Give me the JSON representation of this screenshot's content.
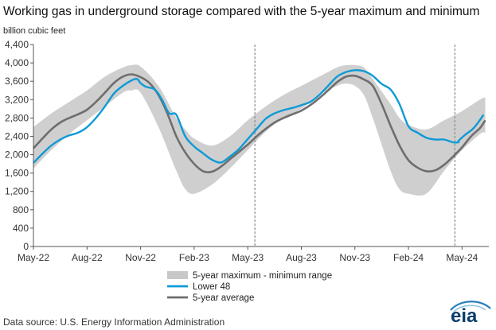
{
  "chart_data": {
    "type": "line",
    "title": "Working gas in underground  storage compared with the 5-year maximum and minimum",
    "ylabel": "billion cubic feet",
    "xlabel": "",
    "ylim": [
      0,
      4400
    ],
    "yticks": [
      0,
      400,
      800,
      1200,
      1600,
      2000,
      2400,
      2800,
      3200,
      3600,
      4000,
      4400
    ],
    "ytick_labels": [
      "0",
      "400",
      "800",
      "1,200",
      "1,600",
      "2,000",
      "2,400",
      "2,800",
      "3,200",
      "3,600",
      "4,000",
      "4,400"
    ],
    "xlim": [
      0,
      25.5
    ],
    "x_unit": "months since May-22",
    "xticks": [
      {
        "x": 0,
        "label": "May-22"
      },
      {
        "x": 3,
        "label": "Aug-22"
      },
      {
        "x": 6,
        "label": "Nov-22"
      },
      {
        "x": 9,
        "label": "Feb-23"
      },
      {
        "x": 12,
        "label": "May-23"
      },
      {
        "x": 15,
        "label": "Aug-23"
      },
      {
        "x": 18,
        "label": "Nov-23"
      },
      {
        "x": 21,
        "label": "Feb-24"
      },
      {
        "x": 24,
        "label": "May-24"
      }
    ],
    "vlines": [
      12.4,
      23.6
    ],
    "grid": false,
    "legend": {
      "position": "bottom-center",
      "entries": [
        {
          "label": "5-year maximum - minimum range",
          "color": "#c8c8c8",
          "kind": "band"
        },
        {
          "label": "Lower 48",
          "color": "#0f9ad6",
          "kind": "line"
        },
        {
          "label": "5-year average",
          "color": "#6e6e6e",
          "kind": "line"
        }
      ]
    },
    "band": {
      "name": "5-year maximum - minimum range",
      "x": [
        0,
        1,
        2,
        3,
        4,
        5,
        5.5,
        6,
        7,
        8,
        8.5,
        9,
        10,
        11,
        12,
        13,
        14,
        15,
        16,
        17,
        17.5,
        18,
        18.5,
        19,
        20,
        20.5,
        21,
        22,
        23,
        24,
        25,
        25.3
      ],
      "max": [
        2600,
        2900,
        3150,
        3400,
        3700,
        3900,
        3950,
        3920,
        3500,
        2800,
        2550,
        2350,
        2200,
        2400,
        2750,
        3050,
        3300,
        3500,
        3700,
        3900,
        3950,
        3950,
        3900,
        3650,
        3100,
        2800,
        2650,
        2550,
        2750,
        2950,
        3200,
        3250
      ],
      "min": [
        1700,
        2100,
        2450,
        2750,
        3050,
        3350,
        3400,
        3350,
        2600,
        1650,
        1250,
        1150,
        1350,
        1700,
        2100,
        2500,
        2800,
        3000,
        3300,
        3500,
        3550,
        3500,
        3300,
        2800,
        1650,
        1250,
        1150,
        1150,
        1650,
        2100,
        2450,
        2480
      ]
    },
    "series": [
      {
        "name": "Lower 48",
        "color": "#0f9ad6",
        "x": [
          0,
          0.5,
          1,
          1.5,
          2,
          2.5,
          3,
          3.5,
          4,
          4.5,
          5,
          5.5,
          5.8,
          6,
          6.3,
          6.8,
          7.2,
          7.6,
          8,
          8.5,
          9,
          9.5,
          10,
          10.5,
          11,
          11.5,
          12,
          12.5,
          13,
          13.5,
          14,
          14.5,
          15,
          15.5,
          16,
          16.5,
          17,
          17.5,
          18,
          18.5,
          19,
          19.5,
          20,
          20.5,
          21,
          21.5,
          22,
          22.5,
          23,
          23.5,
          23.8
        ],
        "y": [
          1820,
          2020,
          2200,
          2330,
          2420,
          2480,
          2600,
          2800,
          3050,
          3330,
          3500,
          3620,
          3650,
          3560,
          3480,
          3420,
          3200,
          2900,
          2870,
          2400,
          2180,
          2030,
          1890,
          1830,
          1960,
          2120,
          2340,
          2560,
          2780,
          2900,
          2970,
          3020,
          3080,
          3150,
          3300,
          3500,
          3700,
          3800,
          3840,
          3820,
          3720,
          3540,
          3420,
          3100,
          2620,
          2480,
          2370,
          2330,
          2330,
          2270,
          2270
        ]
      },
      {
        "name": "5-year average",
        "color": "#6e6e6e",
        "x": [
          0,
          0.5,
          1,
          1.5,
          2,
          2.5,
          3,
          3.5,
          4,
          4.5,
          5,
          5.5,
          6,
          6.5,
          7,
          7.5,
          8,
          8.5,
          9,
          9.5,
          10,
          10.5,
          11,
          11.5,
          12,
          12.5,
          13,
          13.5,
          14,
          14.5,
          15,
          15.5,
          16,
          16.5,
          17,
          17.5,
          18,
          18.5,
          19,
          19.5,
          20,
          20.5,
          21,
          21.5,
          22,
          22.5,
          23,
          23.5,
          24,
          24.5,
          25,
          25.3
        ],
        "y": [
          2140,
          2350,
          2550,
          2700,
          2800,
          2880,
          2980,
          3150,
          3350,
          3560,
          3700,
          3750,
          3690,
          3560,
          3300,
          2900,
          2400,
          2050,
          1800,
          1640,
          1630,
          1740,
          1900,
          2060,
          2220,
          2400,
          2560,
          2700,
          2800,
          2880,
          2960,
          3080,
          3230,
          3400,
          3580,
          3700,
          3720,
          3640,
          3500,
          3100,
          2630,
          2200,
          1880,
          1720,
          1640,
          1660,
          1780,
          1960,
          2160,
          2400,
          2580,
          2750
        ]
      }
    ],
    "lower48_tail": {
      "x": [
        23.8,
        24.2,
        24.6,
        24.9,
        25.2
      ],
      "y": [
        2300,
        2440,
        2560,
        2700,
        2870
      ]
    }
  },
  "source": "Data source:  U.S. Energy Information Administration",
  "logo_text": "eia"
}
